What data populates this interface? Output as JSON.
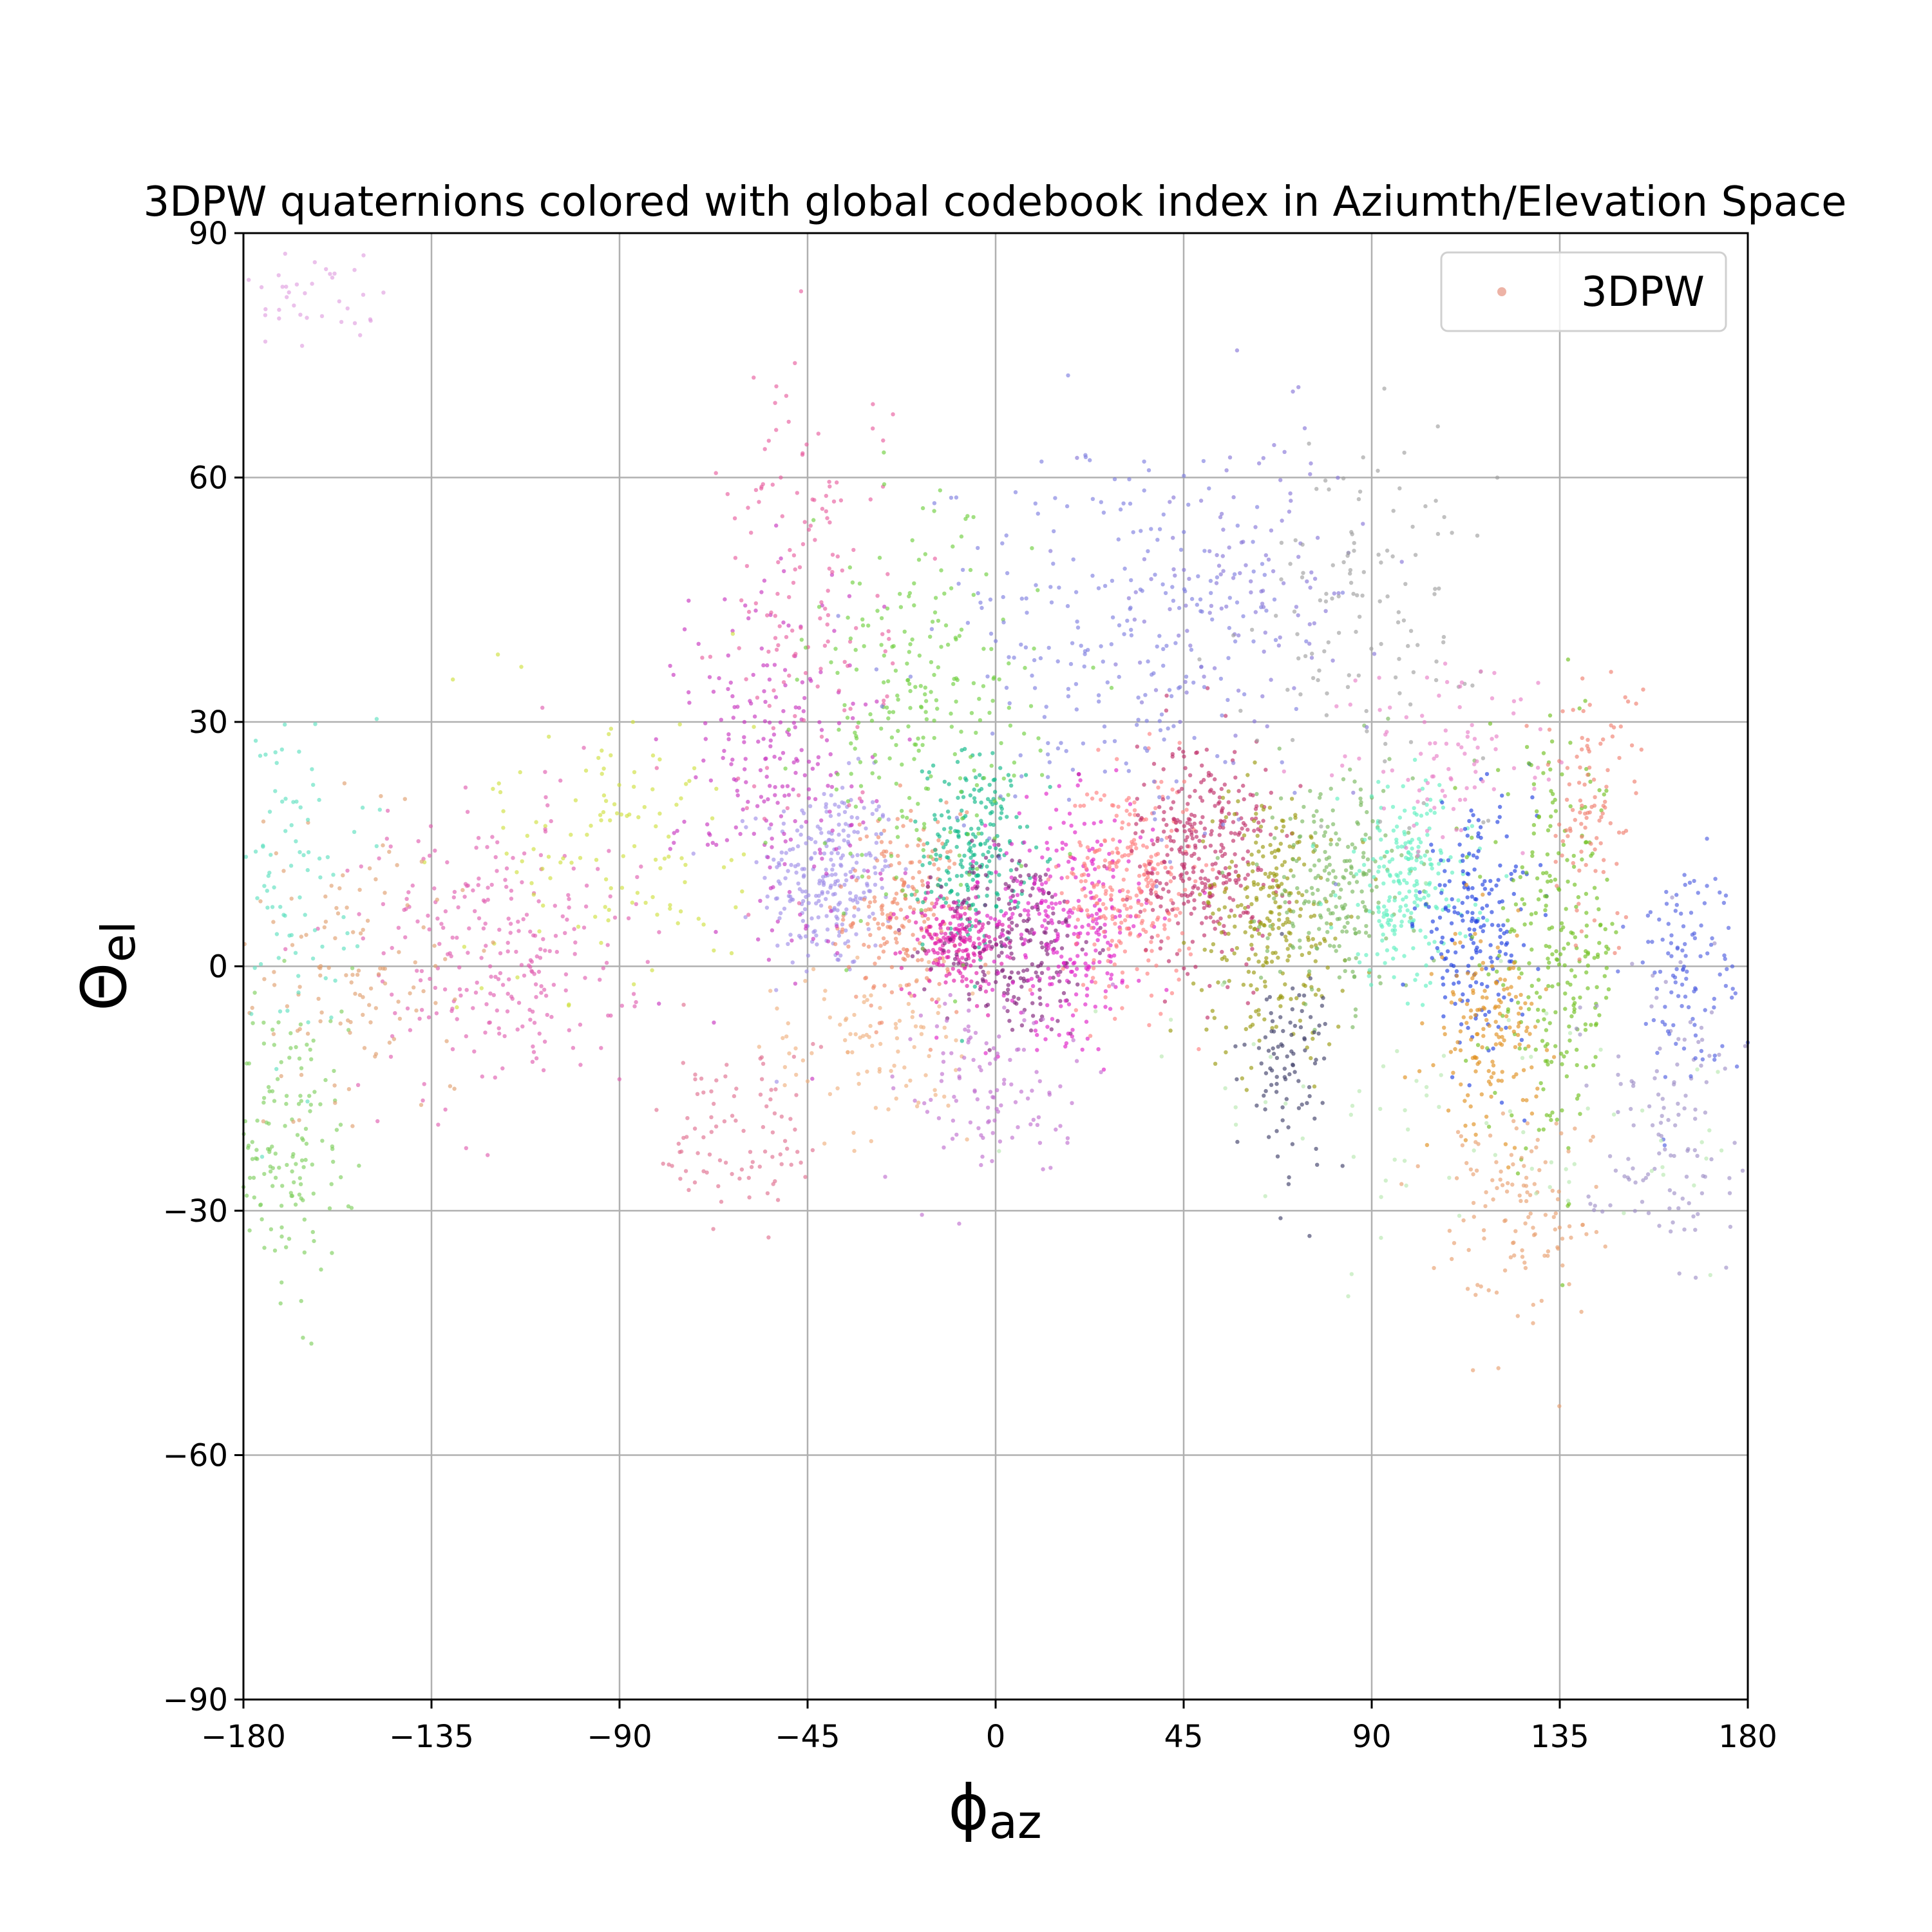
{
  "chart_data": {
    "type": "scatter",
    "title": "3DPW quaternions colored with global codebook index in Aziumth/Elevation Space",
    "xlabel": {
      "main": "ϕ",
      "sub": "az"
    },
    "ylabel": {
      "main": "Θ",
      "sub": "el"
    },
    "xlim": [
      -180,
      180
    ],
    "ylim": [
      -90,
      90
    ],
    "xticks": [
      -180,
      -135,
      -90,
      -45,
      0,
      45,
      90,
      135,
      180
    ],
    "yticks": [
      -90,
      -60,
      -30,
      0,
      30,
      60,
      90
    ],
    "xtick_labels": [
      "−180",
      "−135",
      "−90",
      "−45",
      "0",
      "45",
      "90",
      "135",
      "180"
    ],
    "ytick_labels": [
      "−90",
      "−60",
      "−30",
      "0",
      "30",
      "60",
      "90"
    ],
    "grid": true,
    "legend": {
      "position": "top-right",
      "entries": [
        {
          "label": "3DPW",
          "color": "#e8a090"
        }
      ]
    },
    "series": [
      {
        "color": "#9f8fe8",
        "cx": -40,
        "cy": 11,
        "sx": 8,
        "sy": 6,
        "n": 260
      },
      {
        "color": "#f08a6a",
        "cx": -22,
        "cy": 7,
        "sx": 7,
        "sy": 6,
        "n": 200
      },
      {
        "color": "#10b888",
        "cx": -5,
        "cy": 14,
        "sx": 6,
        "sy": 6,
        "n": 220
      },
      {
        "color": "#e01aa8",
        "cx": -10,
        "cy": 3,
        "sx": 6,
        "sy": 3,
        "n": 200
      },
      {
        "color": "#80207a",
        "cx": 5,
        "cy": 3,
        "sx": 9,
        "sy": 6,
        "n": 220
      },
      {
        "color": "#e020c8",
        "cx": 18,
        "cy": 6,
        "sx": 10,
        "sy": 7,
        "n": 300
      },
      {
        "color": "#ff8080",
        "cx": 32,
        "cy": 10,
        "sx": 8,
        "sy": 7,
        "n": 280
      },
      {
        "color": "#c0306a",
        "cx": 50,
        "cy": 14,
        "sx": 8,
        "sy": 7,
        "n": 320
      },
      {
        "color": "#9a9a10",
        "cx": 66,
        "cy": 6,
        "sx": 9,
        "sy": 8,
        "n": 260
      },
      {
        "color": "#7ab860",
        "cx": 82,
        "cy": 10,
        "sx": 9,
        "sy": 7,
        "n": 220
      },
      {
        "color": "#60f0c0",
        "cx": 98,
        "cy": 10,
        "sx": 8,
        "sy": 6,
        "n": 220
      },
      {
        "color": "#2040e0",
        "cx": 115,
        "cy": 5,
        "sx": 7,
        "sy": 7,
        "n": 200
      },
      {
        "color": "#70c020",
        "cx": 134,
        "cy": 2,
        "sx": 8,
        "sy": 12,
        "n": 260
      },
      {
        "color": "#e09020",
        "cx": 118,
        "cy": -8,
        "sx": 6,
        "sy": 6,
        "n": 150
      },
      {
        "color": "#40406a",
        "cx": 70,
        "cy": -12,
        "sx": 5,
        "sy": 6,
        "n": 90
      },
      {
        "color": "#c838c0",
        "cx": -52,
        "cy": 25,
        "sx": 12,
        "sy": 12,
        "n": 220
      },
      {
        "color": "#e860a0",
        "cx": -45,
        "cy": 45,
        "sx": 10,
        "sy": 14,
        "n": 140
      },
      {
        "color": "#70d040",
        "cx": -18,
        "cy": 30,
        "sx": 14,
        "sy": 12,
        "n": 240
      },
      {
        "color": "#8080e0",
        "cx": 30,
        "cy": 40,
        "sx": 22,
        "sy": 12,
        "n": 240
      },
      {
        "color": "#8878d8",
        "cx": 60,
        "cy": 48,
        "sx": 16,
        "sy": 9,
        "n": 120
      },
      {
        "color": "#a0a0a0",
        "cx": 90,
        "cy": 45,
        "sx": 14,
        "sy": 10,
        "n": 120
      },
      {
        "color": "#e060b0",
        "cx": -120,
        "cy": 2,
        "sx": 16,
        "sy": 9,
        "n": 260
      },
      {
        "color": "#d0e040",
        "cx": -90,
        "cy": 15,
        "sx": 16,
        "sy": 10,
        "n": 120
      },
      {
        "color": "#80d060",
        "cx": -170,
        "cy": -22,
        "sx": 8,
        "sy": 10,
        "n": 160
      },
      {
        "color": "#e0a070",
        "cx": -155,
        "cy": 0,
        "sx": 14,
        "sy": 10,
        "n": 120
      },
      {
        "color": "#60e0c0",
        "cx": -170,
        "cy": 12,
        "sx": 8,
        "sy": 10,
        "n": 90
      },
      {
        "color": "#a090c8",
        "cx": 160,
        "cy": -18,
        "sx": 10,
        "sy": 9,
        "n": 120
      },
      {
        "color": "#5060e0",
        "cx": 165,
        "cy": 0,
        "sx": 7,
        "sy": 7,
        "n": 110
      },
      {
        "color": "#e8a070",
        "cx": 125,
        "cy": -30,
        "sx": 10,
        "sy": 7,
        "n": 120
      },
      {
        "color": "#f08070",
        "cx": 142,
        "cy": 20,
        "sx": 6,
        "sy": 8,
        "n": 100
      },
      {
        "color": "#e880c8",
        "cx": 110,
        "cy": 25,
        "sx": 14,
        "sy": 6,
        "n": 90
      },
      {
        "color": "#f0b080",
        "cx": -30,
        "cy": -10,
        "sx": 12,
        "sy": 6,
        "n": 100
      },
      {
        "color": "#e07090",
        "cx": -60,
        "cy": -20,
        "sx": 10,
        "sy": 6,
        "n": 90
      },
      {
        "color": "#c070d0",
        "cx": 0,
        "cy": -15,
        "sx": 12,
        "sy": 6,
        "n": 110
      },
      {
        "color": "#e0a0e0",
        "cx": -165,
        "cy": 82,
        "sx": 10,
        "sy": 3,
        "n": 40
      },
      {
        "color": "#b8e8b0",
        "cx": 120,
        "cy": -20,
        "sx": 40,
        "sy": 8,
        "n": 80
      }
    ]
  }
}
